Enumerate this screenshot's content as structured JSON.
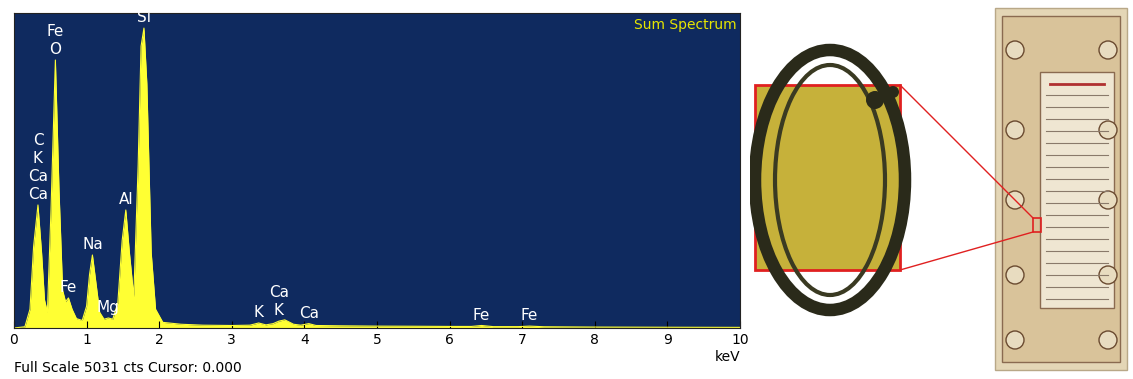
{
  "chart_data": {
    "type": "area",
    "title": "Sum Spectrum",
    "x_label": "keV",
    "footer": "Full Scale 5031 cts Cursor: 0.000",
    "x": [
      0,
      0.15,
      0.22,
      0.27,
      0.33,
      0.38,
      0.42,
      0.46,
      0.51,
      0.57,
      0.62,
      0.67,
      0.71,
      0.75,
      0.8,
      0.86,
      0.94,
      1.0,
      1.04,
      1.08,
      1.12,
      1.18,
      1.24,
      1.3,
      1.36,
      1.43,
      1.49,
      1.54,
      1.59,
      1.65,
      1.71,
      1.75,
      1.79,
      1.83,
      1.89,
      1.95,
      2.05,
      2.3,
      2.6,
      3.0,
      3.25,
      3.37,
      3.47,
      3.57,
      3.65,
      3.73,
      3.85,
      3.95,
      4.06,
      4.16,
      4.5,
      5.0,
      5.5,
      6.0,
      6.3,
      6.44,
      6.6,
      6.95,
      7.1,
      7.3,
      8.0,
      9.0,
      10.0
    ],
    "values": [
      0,
      20,
      300,
      1300,
      1965,
      1200,
      450,
      250,
      1900,
      4280,
      2200,
      600,
      420,
      480,
      300,
      150,
      120,
      350,
      850,
      1166,
      800,
      250,
      140,
      160,
      140,
      400,
      1400,
      1885,
      1200,
      500,
      2600,
      4500,
      4790,
      3900,
      1200,
      300,
      90,
      60,
      45,
      40,
      45,
      80,
      50,
      70,
      110,
      130,
      60,
      45,
      70,
      40,
      35,
      30,
      28,
      25,
      25,
      40,
      22,
      22,
      30,
      20,
      15,
      12,
      10
    ],
    "color": "#ffff33",
    "xlim": [
      0,
      10
    ],
    "xticks": [
      0,
      1,
      2,
      3,
      4,
      5,
      6,
      7,
      8,
      9,
      10
    ],
    "ylim": [
      0,
      5031
    ],
    "yticks": [],
    "tick_labels": "x",
    "annotations": [
      {
        "x": 0.33,
        "labels": [
          "C",
          "K",
          "Ca",
          "Ca"
        ]
      },
      {
        "x": 0.57,
        "labels": [
          "Fe",
          "O"
        ]
      },
      {
        "x": 0.75,
        "labels": [
          "Fe"
        ]
      },
      {
        "x": 1.08,
        "labels": [
          "Na"
        ]
      },
      {
        "x": 1.3,
        "labels": [
          "Mg"
        ]
      },
      {
        "x": 1.54,
        "labels": [
          "Al"
        ]
      },
      {
        "x": 1.79,
        "labels": [
          "Si"
        ]
      },
      {
        "x": 3.37,
        "labels": [
          "K"
        ]
      },
      {
        "x": 3.65,
        "labels": [
          "Ca",
          "K"
        ]
      },
      {
        "x": 4.06,
        "labels": [
          "Ca"
        ]
      },
      {
        "x": 6.44,
        "labels": [
          "Fe"
        ]
      },
      {
        "x": 7.1,
        "labels": [
          "Fe"
        ]
      }
    ]
  }
}
